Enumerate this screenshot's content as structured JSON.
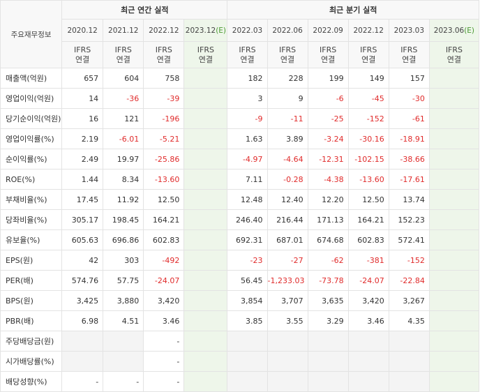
{
  "header": {
    "row_label": "주요재무정보",
    "annual_group": "최근 연간 실적",
    "quarter_group": "최근 분기 실적",
    "annual_periods": [
      "2020.12",
      "2021.12",
      "2022.12",
      "2023.12"
    ],
    "annual_estimate_mark": "(E)",
    "quarter_periods": [
      "2022.03",
      "2022.06",
      "2022.09",
      "2022.12",
      "2023.03",
      "2023.06"
    ],
    "quarter_estimate_mark": "(E)",
    "ifrs_line1": "IFRS",
    "ifrs_line2": "연결"
  },
  "rows": [
    {
      "label": "매출액(억원)",
      "annual": [
        "657",
        "604",
        "758",
        ""
      ],
      "quarter": [
        "182",
        "228",
        "199",
        "149",
        "157",
        ""
      ]
    },
    {
      "label": "영업이익(억원)",
      "annual": [
        "14",
        "-36",
        "-39",
        ""
      ],
      "quarter": [
        "3",
        "9",
        "-6",
        "-45",
        "-30",
        ""
      ]
    },
    {
      "label": "당기순이익(억원)",
      "annual": [
        "16",
        "121",
        "-196",
        ""
      ],
      "quarter": [
        "-9",
        "-11",
        "-25",
        "-152",
        "-61",
        ""
      ]
    },
    {
      "label": "영업이익률(%)",
      "annual": [
        "2.19",
        "-6.01",
        "-5.21",
        ""
      ],
      "quarter": [
        "1.63",
        "3.89",
        "-3.24",
        "-30.16",
        "-18.91",
        ""
      ]
    },
    {
      "label": "순이익률(%)",
      "annual": [
        "2.49",
        "19.97",
        "-25.86",
        ""
      ],
      "quarter": [
        "-4.97",
        "-4.64",
        "-12.31",
        "-102.15",
        "-38.66",
        ""
      ]
    },
    {
      "label": "ROE(%)",
      "annual": [
        "1.44",
        "8.34",
        "-13.60",
        ""
      ],
      "quarter": [
        "7.11",
        "-0.28",
        "-4.38",
        "-13.60",
        "-17.61",
        ""
      ]
    },
    {
      "label": "부채비율(%)",
      "annual": [
        "17.45",
        "11.92",
        "12.50",
        ""
      ],
      "quarter": [
        "12.48",
        "12.40",
        "12.20",
        "12.50",
        "13.74",
        ""
      ]
    },
    {
      "label": "당좌비율(%)",
      "annual": [
        "305.17",
        "198.45",
        "164.21",
        ""
      ],
      "quarter": [
        "246.40",
        "216.44",
        "171.13",
        "164.21",
        "152.23",
        ""
      ]
    },
    {
      "label": "유보율(%)",
      "annual": [
        "605.63",
        "696.86",
        "602.83",
        ""
      ],
      "quarter": [
        "692.31",
        "687.01",
        "674.68",
        "602.83",
        "572.41",
        ""
      ]
    },
    {
      "label": "EPS(원)",
      "annual": [
        "42",
        "303",
        "-492",
        ""
      ],
      "quarter": [
        "-23",
        "-27",
        "-62",
        "-381",
        "-152",
        ""
      ]
    },
    {
      "label": "PER(배)",
      "annual": [
        "574.76",
        "57.75",
        "-24.07",
        ""
      ],
      "quarter": [
        "56.45",
        "-1,233.03",
        "-73.78",
        "-24.07",
        "-22.84",
        ""
      ]
    },
    {
      "label": "BPS(원)",
      "annual": [
        "3,425",
        "3,880",
        "3,420",
        ""
      ],
      "quarter": [
        "3,854",
        "3,707",
        "3,635",
        "3,420",
        "3,267",
        ""
      ]
    },
    {
      "label": "PBR(배)",
      "annual": [
        "6.98",
        "4.51",
        "3.46",
        ""
      ],
      "quarter": [
        "3.85",
        "3.55",
        "3.29",
        "3.46",
        "4.35",
        ""
      ]
    },
    {
      "label": "주당배당금(원)",
      "annual": [
        "",
        "",
        "-",
        ""
      ],
      "quarter": [
        "",
        "",
        "",
        "",
        "",
        ""
      ]
    },
    {
      "label": "시가배당률(%)",
      "annual": [
        "",
        "",
        "-",
        ""
      ],
      "quarter": [
        "",
        "",
        "",
        "",
        "",
        ""
      ]
    },
    {
      "label": "배당성향(%)",
      "annual": [
        "-",
        "-",
        "-",
        ""
      ],
      "quarter": [
        "",
        "",
        "",
        "",
        "",
        ""
      ]
    }
  ],
  "colors": {
    "negative": "#e02b2b",
    "ifrs": "#e2531b",
    "estimate_bg": "#eef6ea",
    "estimate_mark": "#4b9a33"
  }
}
